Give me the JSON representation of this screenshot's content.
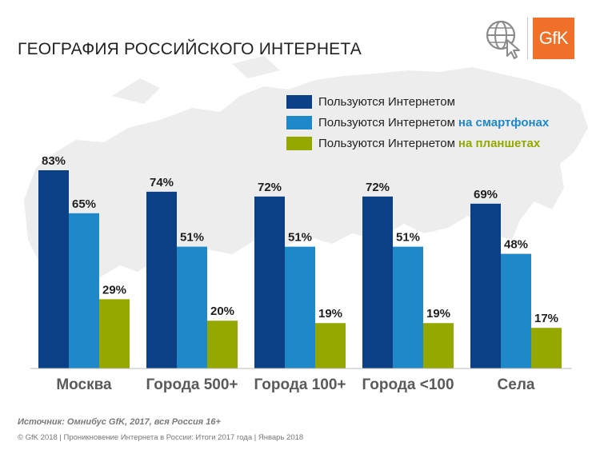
{
  "header": {
    "title": "ГЕОГРАФИЯ РОССИЙСКОГО ИНТЕРНЕТА",
    "logo_text": "GfK",
    "icon": "globe-cursor-icon"
  },
  "legend": {
    "items": [
      {
        "text": "Пользуются Интернетом",
        "highlight": ""
      },
      {
        "text": "Пользуются Интернетом",
        "highlight": "на смартфонах"
      },
      {
        "text": "Пользуются Интернетом",
        "highlight": "на планшетах"
      }
    ]
  },
  "chart_data": {
    "type": "bar",
    "title": "ГЕОГРАФИЯ РОССИЙСКОГО ИНТЕРНЕТА",
    "categories": [
      "Москва",
      "Города 500+",
      "Города 100+",
      "Города <100",
      "Села"
    ],
    "series": [
      {
        "name": "Пользуются Интернетом",
        "color": "#0b3f86",
        "values": [
          83,
          74,
          72,
          72,
          69
        ]
      },
      {
        "name": "Пользуются Интернетом на смартфонах",
        "color": "#1e88c9",
        "values": [
          65,
          51,
          51,
          51,
          48
        ]
      },
      {
        "name": "Пользуются Интернетом на планшетах",
        "color": "#94a800",
        "values": [
          29,
          20,
          19,
          19,
          17
        ]
      }
    ],
    "value_suffix": "%",
    "ylim": [
      0,
      100
    ],
    "xlabel": "",
    "ylabel": "",
    "grid": false,
    "legend_position": "top-right"
  },
  "footer": {
    "source": "Источник: Омнибус GfK, 2017, вся Россия 16+",
    "copyright": "© GfK 2018 | Проникновение Интернета в России: Итоги 2017 года | Январь 2018"
  },
  "colors": {
    "map": "#ededed",
    "brand": "#f0702a",
    "category_label": "#5a5a5a"
  }
}
